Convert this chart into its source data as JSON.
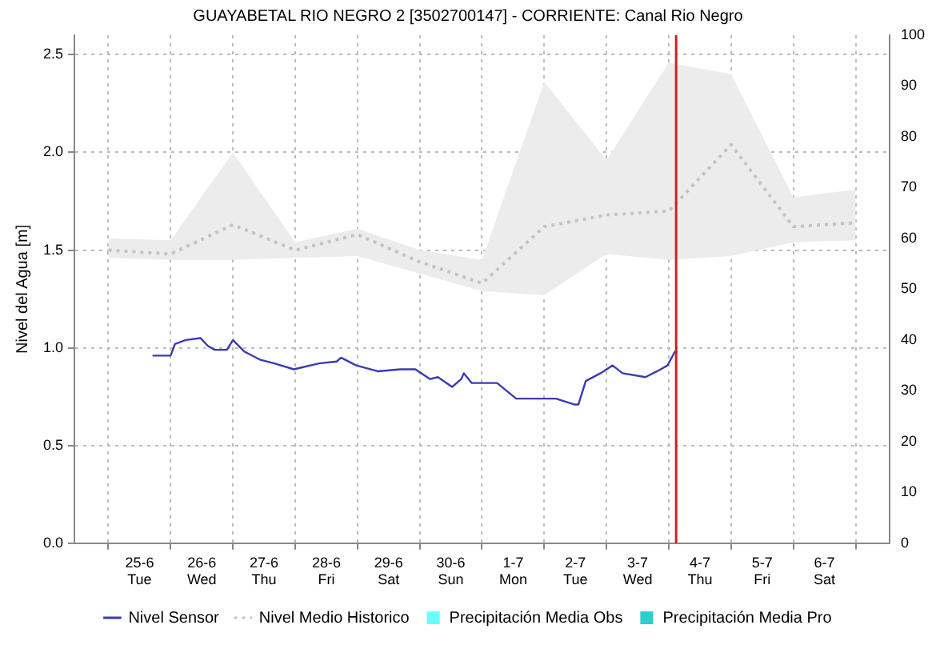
{
  "chart_data": {
    "type": "line",
    "title": "GUAYABETAL RIO NEGRO 2 [3502700147] - CORRIENTE: Canal Rio Negro",
    "ylabel": "Nivel del Agua [m]",
    "xlim": [
      "--06-24T12:00",
      "--07-06T12:00"
    ],
    "xticks": [
      {
        "value": "--06-25",
        "label": "25-6\nTue"
      },
      {
        "value": "--06-26",
        "label": "26-6\nWed"
      },
      {
        "value": "--06-27",
        "label": "27-6\nThu"
      },
      {
        "value": "--06-28",
        "label": "28-6\nFri"
      },
      {
        "value": "--06-29",
        "label": "29-6\nSat"
      },
      {
        "value": "--06-30",
        "label": "30-6\nSun"
      },
      {
        "value": "--07-01",
        "label": "1-7\nMon"
      },
      {
        "value": "--07-02",
        "label": "2-7\nTue"
      },
      {
        "value": "--07-03",
        "label": "3-7\nWed"
      },
      {
        "value": "--07-04",
        "label": "4-7\nThu"
      },
      {
        "value": "--07-05",
        "label": "5-7\nFri"
      },
      {
        "value": "--07-06",
        "label": "6-7\nSat"
      }
    ],
    "ylim": [
      0,
      2.6
    ],
    "yticks": [
      {
        "value": 0,
        "label": "0.0"
      },
      {
        "value": 0.5,
        "label": "0.5"
      },
      {
        "value": 1,
        "label": "1.0"
      },
      {
        "value": 1.5,
        "label": "1.5"
      },
      {
        "value": 2,
        "label": "2.0"
      },
      {
        "value": 2.5,
        "label": "2.5"
      }
    ],
    "y2lim": [
      0,
      100
    ],
    "y2ticks": [
      0,
      10,
      20,
      30,
      40,
      50,
      60,
      70,
      80,
      90,
      100
    ],
    "grid": true,
    "legend": "bottom",
    "ref_lines": [
      {
        "axis": "x",
        "value": "--07-03T14:50",
        "color": "#cc2222"
      }
    ],
    "series": [
      {
        "name": "Nivel Sensor",
        "color": "#3b3bb0",
        "line_style": "solid",
        "x": [
          "--06-25T05:00",
          "--06-25T12:00",
          "--06-25T13:40",
          "--06-25T17:50",
          "--06-25T23:30",
          "--06-26T02:20",
          "--06-26T05:00",
          "--06-26T09:40",
          "--06-26T12:00",
          "--06-26T16:30",
          "--06-26T22:20",
          "--06-27T04:00",
          "--06-27T11:30",
          "--06-27T21:10",
          "--06-28T04:00",
          "--06-28T05:40",
          "--06-28T11:30",
          "--06-28T19:50",
          "--06-29T04:30",
          "--06-29T10:20",
          "--06-29T16:00",
          "--06-29T19:00",
          "--06-30T00:30",
          "--06-30T04:00",
          "--06-30T05:00",
          "--06-30T08:00",
          "--06-30T17:50",
          "--07-01T01:10",
          "--07-01T16:30",
          "--07-01T23:30",
          "--07-02T01:10",
          "--07-02T04:00",
          "--07-02T09:40",
          "--07-02T14:20",
          "--07-02T18:10",
          "--07-03T03:00",
          "--07-03T07:30",
          "--07-03T11:30",
          "--07-03T14:20",
          "--07-03T15:20"
        ],
        "values": [
          0.96,
          0.96,
          1.02,
          1.04,
          1.05,
          1.01,
          0.99,
          0.99,
          1.04,
          0.98,
          0.94,
          0.92,
          0.89,
          0.92,
          0.93,
          0.95,
          0.91,
          0.88,
          0.89,
          0.89,
          0.84,
          0.85,
          0.8,
          0.84,
          0.87,
          0.82,
          0.82,
          0.74,
          0.74,
          0.71,
          0.71,
          0.83,
          0.87,
          0.91,
          0.87,
          0.85,
          0.88,
          0.91,
          0.98,
          0.98
        ]
      },
      {
        "name": "Nivel Medio Historico",
        "color": "#c4c4c4",
        "line_style": "dotted",
        "x": [
          "--06-24T12:00",
          "--06-25T12:00",
          "--06-26T12:00",
          "--06-27T12:00",
          "--06-28T12:00",
          "--06-29T12:00",
          "--06-30T12:00",
          "--07-01T12:00",
          "--07-02T12:00",
          "--07-03T12:00",
          "--07-04T12:00",
          "--07-05T12:00",
          "--07-06T12:00"
        ],
        "values": [
          1.5,
          1.48,
          1.63,
          1.5,
          1.58,
          1.44,
          1.33,
          1.62,
          1.68,
          1.7,
          2.04,
          1.62,
          1.64
        ],
        "lower": [
          1.46,
          1.45,
          1.45,
          1.46,
          1.47,
          1.38,
          1.29,
          1.27,
          1.48,
          1.45,
          1.47,
          1.54,
          1.55
        ],
        "upper": [
          1.56,
          1.55,
          2.0,
          1.54,
          1.61,
          1.5,
          1.45,
          2.36,
          1.96,
          2.46,
          2.4,
          1.77,
          1.81
        ]
      },
      {
        "name": "Precipitación Media Obs",
        "type": "bar",
        "color": "#66ffff"
      },
      {
        "name": "Precipitación Media Pro",
        "type": "bar",
        "color": "#33cccc"
      }
    ]
  }
}
